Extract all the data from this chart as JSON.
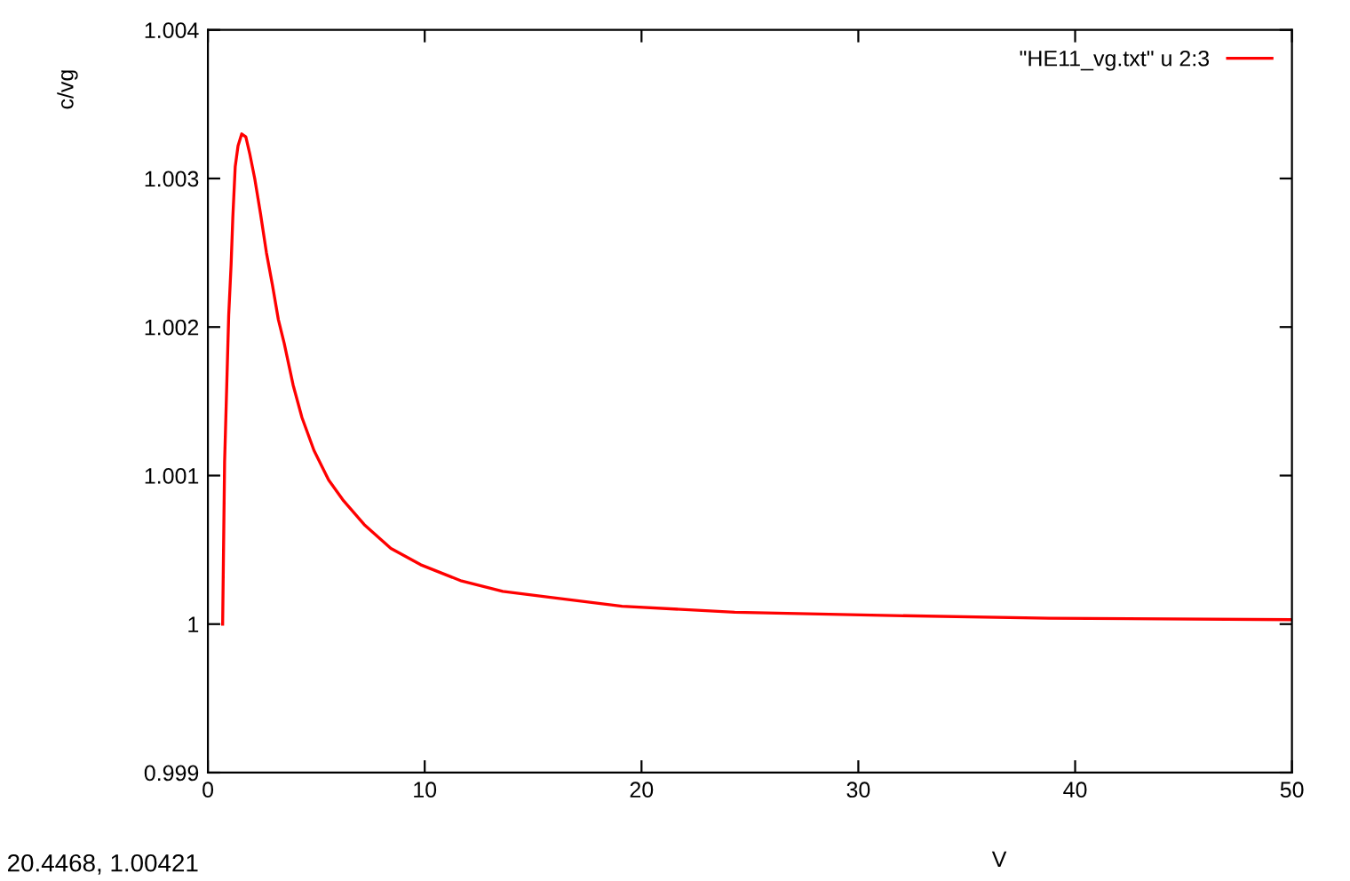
{
  "chart_data": {
    "type": "line",
    "xlabel": "V",
    "ylabel": "c/vg",
    "legend": "top right",
    "grid": false,
    "marker": "none",
    "line_style": "solid",
    "xlim": [
      0,
      50
    ],
    "ylim": [
      0.999,
      1.004
    ],
    "xticks": [
      0,
      10,
      20,
      30,
      40,
      50
    ],
    "yticks": [
      0.999,
      1,
      1.001,
      1.002,
      1.003,
      1.004
    ],
    "annotations": [
      "20.4468, 1.00421"
    ],
    "series": [
      {
        "name": "\"HE11_vg.txt\" u 2:3",
        "color": "#ff0000",
        "x": [
          0.68,
          0.77,
          0.87,
          0.96,
          1.07,
          1.15,
          1.26,
          1.39,
          1.56,
          1.75,
          1.94,
          2.16,
          2.43,
          2.7,
          2.98,
          3.25,
          3.52,
          3.93,
          4.34,
          4.89,
          5.57,
          6.26,
          7.21,
          8.44,
          9.81,
          11.7,
          13.6,
          15.8,
          19.1,
          24.3,
          30.6,
          38.8,
          50
        ],
        "values": [
          1.0,
          1.00109,
          1.00161,
          1.00208,
          1.00242,
          1.00274,
          1.00308,
          1.00322,
          1.0033,
          1.00328,
          1.00316,
          1.003,
          1.00276,
          1.0025,
          1.00228,
          1.00205,
          1.00189,
          1.00161,
          1.00139,
          1.00117,
          1.00097,
          1.00083,
          1.00067,
          1.00051,
          1.0004,
          1.00029,
          1.00022,
          1.00018,
          1.00012,
          1.00008,
          1.00006,
          1.00004,
          1.00003
        ]
      }
    ]
  }
}
